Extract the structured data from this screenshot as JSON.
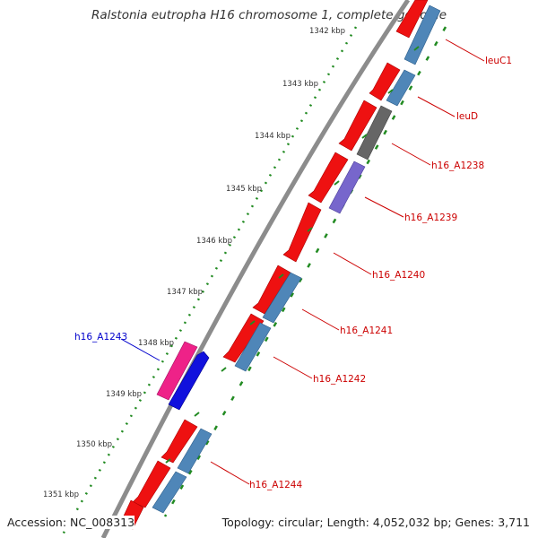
{
  "title": "Ralstonia eutropha H16 chromosome 1, complete genome",
  "footer": {
    "accession": "Accession: NC_008313",
    "summary": "Topology: circular; Length: 4,052,032 bp; Genes: 3,711"
  },
  "colors": {
    "backbone": "#8c8c8c",
    "tick": "#228b22",
    "cds_forward": "#ee1111",
    "cds_reverse_blue": "#4f86b8",
    "pseudo_gray": "#666666",
    "purple": "#7766cc",
    "magenta": "#ee2288",
    "dark_blue": "#1111dd",
    "label_red": "#cc0000",
    "label_blue": "#0000cc"
  },
  "kbp_labels": [
    "1342 kbp",
    "1343 kbp",
    "1344 kbp",
    "1345 kbp",
    "1346 kbp",
    "1347 kbp",
    "1348 kbp",
    "1349 kbp",
    "1350 kbp",
    "1351 kbp"
  ],
  "gene_labels": [
    {
      "name": "leuC1",
      "color": "red"
    },
    {
      "name": "leuD",
      "color": "red"
    },
    {
      "name": "h16_A1238",
      "color": "red"
    },
    {
      "name": "h16_A1239",
      "color": "red"
    },
    {
      "name": "h16_A1240",
      "color": "red"
    },
    {
      "name": "h16_A1241",
      "color": "red"
    },
    {
      "name": "h16_A1242",
      "color": "red"
    },
    {
      "name": "h16_A1243",
      "color": "blue"
    },
    {
      "name": "h16_A1244",
      "color": "red"
    }
  ]
}
